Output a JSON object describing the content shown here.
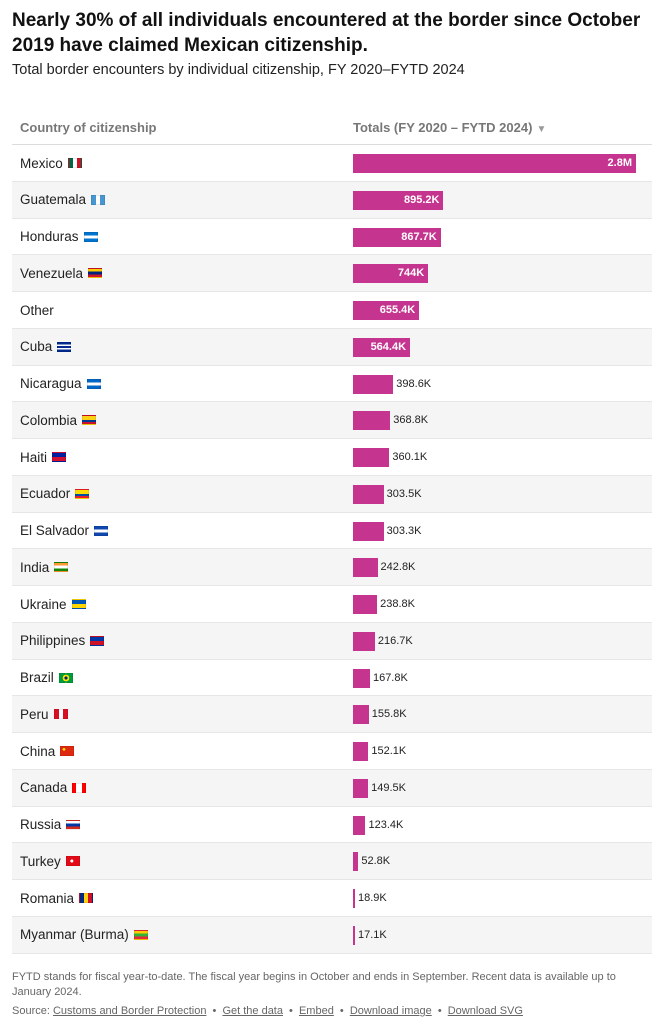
{
  "header": {
    "title": "Nearly 30% of all individuals encountered at the border since October 2019 have claimed Mexican citizenship.",
    "subtitle": "Total border encounters by individual citizenship, FY 2020–FYTD 2024"
  },
  "table": {
    "col_country": "Country of citizenship",
    "col_total": "Totals (FY 2020 – FYTD 2024)",
    "sort_icon": "▼"
  },
  "chart_data": {
    "type": "bar",
    "orientation": "horizontal",
    "title": "Nearly 30% of all individuals encountered at the border since October 2019 have claimed Mexican citizenship.",
    "subtitle": "Total border encounters by individual citizenship, FY 2020–FYTD 2024",
    "bar_color": "#c5358f",
    "xlim": [
      0,
      2800000
    ],
    "categories": [
      "Mexico",
      "Guatemala",
      "Honduras",
      "Venezuela",
      "Other",
      "Cuba",
      "Nicaragua",
      "Colombia",
      "Haiti",
      "Ecuador",
      "El Salvador",
      "India",
      "Ukraine",
      "Philippines",
      "Brazil",
      "Peru",
      "China",
      "Canada",
      "Russia",
      "Turkey",
      "Romania",
      "Myanmar (Burma)"
    ],
    "values": [
      2800000,
      895200,
      867700,
      744000,
      655400,
      564400,
      398600,
      368800,
      360100,
      303500,
      303300,
      242800,
      238800,
      216700,
      167800,
      155800,
      152100,
      149500,
      123400,
      52800,
      18900,
      17100
    ],
    "labels": [
      "2.8M",
      "895.2K",
      "867.7K",
      "744K",
      "655.4K",
      "564.4K",
      "398.6K",
      "368.8K",
      "360.1K",
      "303.5K",
      "303.3K",
      "242.8K",
      "238.8K",
      "216.7K",
      "167.8K",
      "155.8K",
      "152.1K",
      "149.5K",
      "123.4K",
      "52.8K",
      "18.9K",
      "17.1K"
    ],
    "flags": [
      "mexico-flag-icon",
      "guatemala-flag-icon",
      "honduras-flag-icon",
      "venezuela-flag-icon",
      "",
      "cuba-flag-icon",
      "nicaragua-flag-icon",
      "colombia-flag-icon",
      "haiti-flag-icon",
      "ecuador-flag-icon",
      "el-salvador-flag-icon",
      "india-flag-icon",
      "ukraine-flag-icon",
      "philippines-flag-icon",
      "brazil-flag-icon",
      "peru-flag-icon",
      "china-flag-icon",
      "canada-flag-icon",
      "russia-flag-icon",
      "turkey-flag-icon",
      "romania-flag-icon",
      "myanmar-flag-icon"
    ]
  },
  "footer": {
    "note": "FYTD stands for fiscal year-to-date. The fiscal year begins in October and ends in September. Recent data is available up to January 2024.",
    "source_prefix": "Source:",
    "source_link": "Customs and Border Protection",
    "links": [
      "Get the data",
      "Embed",
      "Download image",
      "Download SVG"
    ],
    "separator": "•"
  }
}
